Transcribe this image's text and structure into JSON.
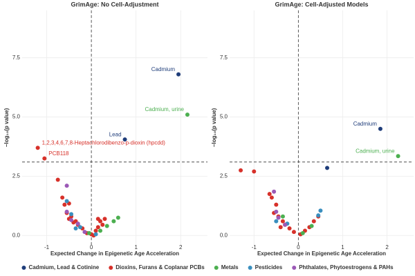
{
  "chart_data": [
    {
      "type": "scatter",
      "title": "GrimAge: No Cell-Adjustment",
      "x_label": "Expected Change in Epigenetic Age Acceleration",
      "y_label": "−log₁₀(p value)",
      "xlim": [
        -1.55,
        2.6
      ],
      "ylim": [
        -0.4,
        9.5
      ],
      "xticks": [
        -1,
        0,
        1,
        2
      ],
      "yticks": [
        {
          "value": 0,
          "label": "0.0"
        },
        2.5,
        {
          "value": 5,
          "label": "5.0"
        },
        7.5
      ],
      "vline": 0,
      "hline": 3.1,
      "grid": true,
      "legend": "bottom",
      "series": [
        {
          "name": "Cadmium, Lead & Cotinine",
          "color": "#1f3d7a",
          "x": [
            1.95,
            0.75
          ],
          "values": [
            6.8,
            4.05
          ],
          "point_labels": [
            "Cadmium",
            "Lead"
          ]
        },
        {
          "name": "Dioxins, Furans & Coplanar PCBs",
          "color": "#d7312a",
          "x": [
            -1.2,
            -1.05,
            -0.75,
            -0.65,
            -0.6,
            -0.5,
            -0.55,
            -0.5,
            -0.45,
            -0.4,
            -0.3,
            -0.2,
            -0.1,
            0,
            0.05,
            0.15,
            0.2,
            0.25,
            0.3,
            0.1,
            -0.35,
            0.15
          ],
          "values": [
            3.7,
            3.25,
            2.35,
            1.6,
            1.3,
            1.35,
            0.95,
            0.7,
            0.8,
            0.55,
            0.45,
            0.3,
            0.1,
            0.05,
            0,
            0.35,
            0.6,
            0.45,
            0.7,
            0.2,
            0.6,
            0.7
          ],
          "point_labels": [
            "1,2,3,4,6,7,8-Heptachlorodibenzo-p-dioxin (hpcdd)",
            "PCB118",
            null,
            null,
            null,
            null,
            null,
            null,
            null,
            null,
            null,
            null,
            null,
            null,
            null,
            null,
            null,
            null,
            null,
            null,
            null,
            null
          ]
        },
        {
          "name": "Metals",
          "color": "#4caf50",
          "x": [
            2.15,
            0.6,
            0.5,
            0.2,
            -0.05,
            0.35
          ],
          "values": [
            5.1,
            0.75,
            0.6,
            0.2,
            0.1,
            0.4
          ],
          "point_labels": [
            "Cadmium, urine",
            null,
            null,
            null,
            null,
            null
          ]
        },
        {
          "name": "Pesticides",
          "color": "#3a8fbf",
          "x": [
            -0.55,
            -0.45,
            -0.25,
            -0.35,
            0.1
          ],
          "values": [
            1.45,
            0.9,
            0.35,
            0.3,
            0.05
          ]
        },
        {
          "name": "Phthalates, Phytoestrogens & PAHs",
          "color": "#9b59b6",
          "x": [
            -0.55,
            -0.55,
            -0.45,
            -0.3,
            -0.15
          ],
          "values": [
            2.1,
            1.0,
            0.65,
            0.5,
            0.15
          ]
        }
      ]
    },
    {
      "type": "scatter",
      "title": "GrimAge: Cell-Adjusted Models",
      "x_label": "Expected Change in Epigenetic Age Acceleration",
      "y_label": "−log₁₀(p value)",
      "xlim": [
        -1.55,
        2.6
      ],
      "ylim": [
        -0.4,
        9.5
      ],
      "xticks": [
        -1,
        0,
        1,
        2
      ],
      "yticks": [
        {
          "value": 0,
          "label": "0.0"
        },
        2.5,
        {
          "value": 5,
          "label": "5.0"
        },
        7.5
      ],
      "vline": 0,
      "hline": 3.1,
      "grid": true,
      "series": [
        {
          "color": "#1f3d7a",
          "x": [
            1.85,
            0.65
          ],
          "values": [
            4.5,
            2.85
          ],
          "point_labels": [
            "Cadmium",
            null
          ]
        },
        {
          "color": "#d7312a",
          "x": [
            -1.3,
            -1.0,
            -0.65,
            -0.6,
            -0.5,
            -0.55,
            -0.45,
            -0.35,
            -0.3,
            -0.2,
            -0.1,
            0.05,
            0.15,
            0.25,
            0.35,
            0.45,
            -0.4
          ],
          "values": [
            2.75,
            2.7,
            1.75,
            1.6,
            1.3,
            0.95,
            0.8,
            0.6,
            0.45,
            0.3,
            0.15,
            0.05,
            0.2,
            0.35,
            0.6,
            0.8,
            0.35
          ]
        },
        {
          "color": "#4caf50",
          "x": [
            2.25,
            -0.35,
            0.3,
            0.1
          ],
          "values": [
            3.35,
            0.8,
            0.4,
            0.1
          ],
          "point_labels": [
            "Cadmium, urine",
            null,
            null,
            null
          ]
        },
        {
          "color": "#3a8fbf",
          "x": [
            0.5,
            0.45,
            -0.5,
            -0.25
          ],
          "values": [
            1.05,
            0.85,
            0.6,
            0.5
          ]
        },
        {
          "color": "#9b59b6",
          "x": [
            -0.55,
            -0.5,
            -0.45,
            -0.3
          ],
          "values": [
            1.85,
            1.0,
            0.75,
            0.45
          ]
        }
      ]
    }
  ]
}
